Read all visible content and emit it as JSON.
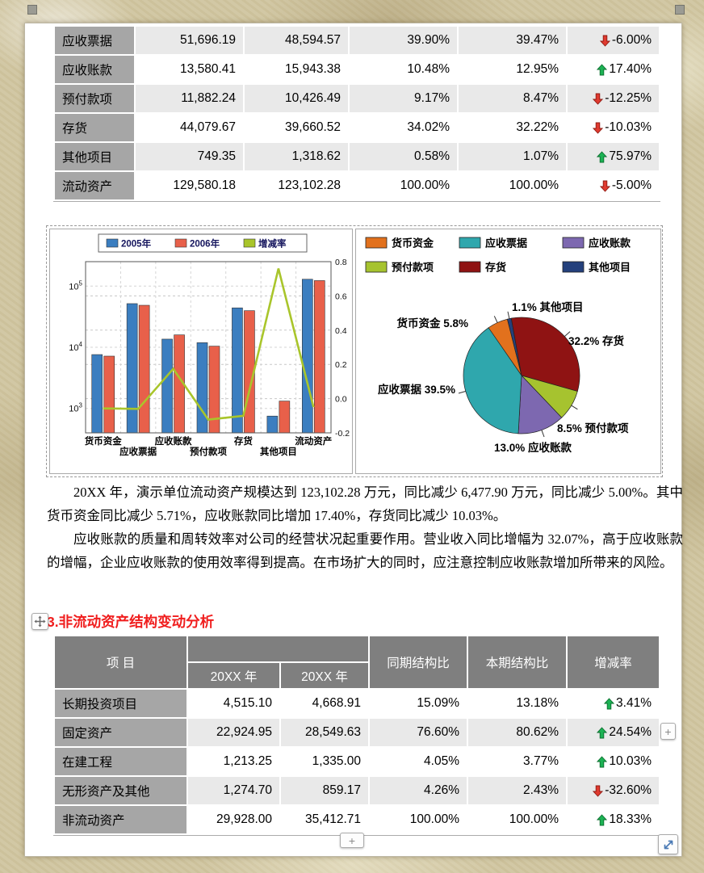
{
  "colors": {
    "up_arrow": "#1cb254",
    "up_arrow_edge": "#0b6e2e",
    "down_arrow": "#e03a2f",
    "down_arrow_edge": "#8e1a12",
    "header_bg": "#7f7f7f",
    "label_bg": "#a6a6a6",
    "row_shade": "#e9e9e9",
    "heading": "#f01e1e"
  },
  "top_table": {
    "rows": [
      {
        "label": "应收票据",
        "y_prev": "51,696.19",
        "y_curr": "48,594.57",
        "prev_pct": "39.90%",
        "curr_pct": "39.47%",
        "change": "-6.00%",
        "trend": "down"
      },
      {
        "label": "应收账款",
        "y_prev": "13,580.41",
        "y_curr": "15,943.38",
        "prev_pct": "10.48%",
        "curr_pct": "12.95%",
        "change": "17.40%",
        "trend": "up"
      },
      {
        "label": "预付款项",
        "y_prev": "11,882.24",
        "y_curr": "10,426.49",
        "prev_pct": "9.17%",
        "curr_pct": "8.47%",
        "change": "-12.25%",
        "trend": "down"
      },
      {
        "label": "存货",
        "y_prev": "44,079.67",
        "y_curr": "39,660.52",
        "prev_pct": "34.02%",
        "curr_pct": "32.22%",
        "change": "-10.03%",
        "trend": "down"
      },
      {
        "label": "其他项目",
        "y_prev": "749.35",
        "y_curr": "1,318.62",
        "prev_pct": "0.58%",
        "curr_pct": "1.07%",
        "change": "75.97%",
        "trend": "up"
      },
      {
        "label": "流动资产",
        "y_prev": "129,580.18",
        "y_curr": "123,102.28",
        "prev_pct": "100.00%",
        "curr_pct": "100.00%",
        "change": "-5.00%",
        "trend": "down"
      }
    ]
  },
  "chart_data": [
    {
      "type": "bar",
      "subtype": "grouped-bars-with-line",
      "categories": [
        "货币资金",
        "应收票据",
        "应收账款",
        "预付款项",
        "存货",
        "其他项目",
        "流动资产"
      ],
      "series": [
        {
          "name": "2005年",
          "color": "#3b7ec0",
          "values": [
            7592.32,
            51696.19,
            13580.41,
            11882.24,
            44079.67,
            749.35,
            129580.18
          ]
        },
        {
          "name": "2006年",
          "color": "#e8604a",
          "values": [
            7158.7,
            48594.57,
            15943.38,
            10426.49,
            39660.52,
            1318.62,
            123102.28
          ]
        }
      ],
      "line": {
        "name": "增减率",
        "color": "#a9c52b",
        "values": [
          -0.0571,
          -0.06,
          0.174,
          -0.1225,
          -0.1003,
          0.7597,
          -0.05
        ]
      },
      "y_left": {
        "scale": "log",
        "tick_exponents": [
          3,
          4,
          5
        ],
        "range_log10": [
          2.6,
          5.4
        ]
      },
      "y_right": {
        "ticks": [
          0.8,
          0.6,
          0.4,
          0.2,
          0.0,
          -0.2
        ],
        "range": [
          -0.2,
          0.8
        ]
      },
      "legend_position": "top",
      "grid": "dashed"
    },
    {
      "type": "pie",
      "start_angle_deg": -35,
      "slices": [
        {
          "name": "货币资金",
          "value_pct": 5.8,
          "color": "#e2711d",
          "label": "货币资金 5.8%"
        },
        {
          "name": "其他项目",
          "value_pct": 1.1,
          "color": "#24407c",
          "label": "1.1% 其他项目"
        },
        {
          "name": "存货",
          "value_pct": 32.2,
          "color": "#8f1313",
          "label": "32.2% 存货"
        },
        {
          "name": "预付款项",
          "value_pct": 8.5,
          "color": "#a6c32f",
          "label": "8.5% 预付款项"
        },
        {
          "name": "应收账款",
          "value_pct": 13.0,
          "color": "#7d68b0",
          "label": "13.0% 应收账款"
        },
        {
          "name": "应收票据",
          "value_pct": 39.5,
          "color": "#2fa7ad",
          "label": "应收票据 39.5%"
        }
      ],
      "legend": [
        {
          "name": "货币资金",
          "color": "#e2711d"
        },
        {
          "name": "应收票据",
          "color": "#2fa7ad"
        },
        {
          "name": "应收账款",
          "color": "#7d68b0"
        },
        {
          "name": "预付款项",
          "color": "#a6c32f"
        },
        {
          "name": "存货",
          "color": "#8f1313"
        },
        {
          "name": "其他项目",
          "color": "#24407c"
        }
      ],
      "legend_position": "top"
    }
  ],
  "paragraphs": [
    "20XX 年，演示单位流动资产规模达到 123,102.28 万元，同比减少 6,477.90 万元，同比减少 5.00%。其中货币资金同比减少 5.71%，应收账款同比增加 17.40%，存货同比减少 10.03%。",
    "应收账款的质量和周转效率对公司的经营状况起重要作用。营业收入同比增幅为 32.07%，高于应收账款的增幅，企业应收账款的使用效率得到提高。在市场扩大的同时，应注意控制应收账款增加所带来的风险。"
  ],
  "section_heading": "3.非流动资产结构变动分析",
  "bottom_table": {
    "headers": {
      "item": "项  目",
      "year_prev": "20XX 年",
      "year_curr": "20XX 年",
      "prev_struct": "同期结构比",
      "curr_struct": "本期结构比",
      "change": "增减率"
    },
    "rows": [
      {
        "label": "长期投资项目",
        "y_prev": "4,515.10",
        "y_curr": "4,668.91",
        "prev_pct": "15.09%",
        "curr_pct": "13.18%",
        "change": "3.41%",
        "trend": "up"
      },
      {
        "label": "固定资产",
        "y_prev": "22,924.95",
        "y_curr": "28,549.63",
        "prev_pct": "76.60%",
        "curr_pct": "80.62%",
        "change": "24.54%",
        "trend": "up"
      },
      {
        "label": "在建工程",
        "y_prev": "1,213.25",
        "y_curr": "1,335.00",
        "prev_pct": "4.05%",
        "curr_pct": "3.77%",
        "change": "10.03%",
        "trend": "up"
      },
      {
        "label": "无形资产及其他",
        "y_prev": "1,274.70",
        "y_curr": "859.17",
        "prev_pct": "4.26%",
        "curr_pct": "2.43%",
        "change": "-32.60%",
        "trend": "down"
      },
      {
        "label": "非流动资产",
        "y_prev": "29,928.00",
        "y_curr": "35,412.71",
        "prev_pct": "100.00%",
        "curr_pct": "100.00%",
        "change": "18.33%",
        "trend": "up"
      }
    ]
  },
  "controls": {
    "add_row_button": "+",
    "add_col_button": "+"
  }
}
